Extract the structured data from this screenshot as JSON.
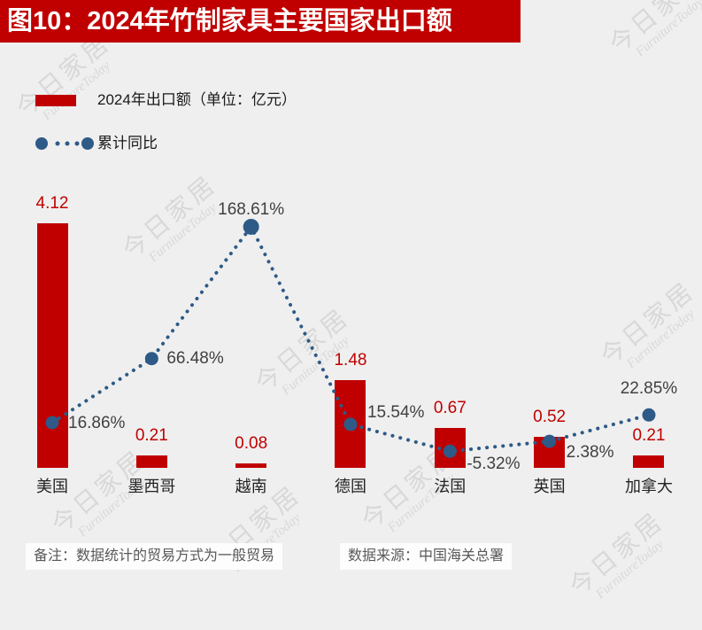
{
  "title": {
    "text": "图10：2024年竹制家具主要国家出口额"
  },
  "legend": {
    "bar_label": "2024年出口额（单位：亿元）",
    "line_label": "累计同比"
  },
  "colors": {
    "title_bg": "#c00000",
    "title_text": "#ffffff",
    "bar": "#c00000",
    "line": "#2d5a87",
    "bar_value_text": "#c00000",
    "pct_text": "#404040",
    "background": "#efefef",
    "footer_text": "#595959"
  },
  "chart_data": {
    "type": "bar+line",
    "categories": [
      "美国",
      "墨西哥",
      "越南",
      "德国",
      "法国",
      "英国",
      "加拿大"
    ],
    "series": [
      {
        "name": "2024年出口额（单位：亿元）",
        "type": "bar",
        "values": [
          4.12,
          0.21,
          0.08,
          1.48,
          0.67,
          0.52,
          0.21
        ],
        "labels": [
          "4.12",
          "0.21",
          "0.08",
          "1.48",
          "0.67",
          "0.52",
          "0.21"
        ]
      },
      {
        "name": "累计同比",
        "type": "line",
        "values": [
          16.86,
          66.48,
          168.61,
          15.54,
          -5.32,
          2.38,
          22.85
        ],
        "labels": [
          "16.86%",
          "66.48%",
          "168.61%",
          "15.54%",
          "-5.32%",
          "2.38%",
          "22.85%"
        ]
      }
    ],
    "legend_position": "top-left",
    "grid": false,
    "axes_visible": false,
    "bar_axis_range": [
      0,
      4.12
    ],
    "line_axis_range": [
      -5.32,
      168.61
    ],
    "pct_label_offsets": [
      [
        18,
        1,
        "l"
      ],
      [
        17,
        0,
        "l"
      ],
      [
        0,
        -19,
        "c"
      ],
      [
        19,
        -13,
        "l"
      ],
      [
        19,
        15,
        "l"
      ],
      [
        19,
        13,
        "l"
      ],
      [
        0,
        -29,
        "c"
      ]
    ]
  },
  "footer": {
    "note": "备注：数据统计的贸易方式为一般贸易",
    "source": "数据来源：中国海关总署"
  },
  "watermark": {
    "cjk": "今日家居",
    "en": "FurnitureToday"
  }
}
